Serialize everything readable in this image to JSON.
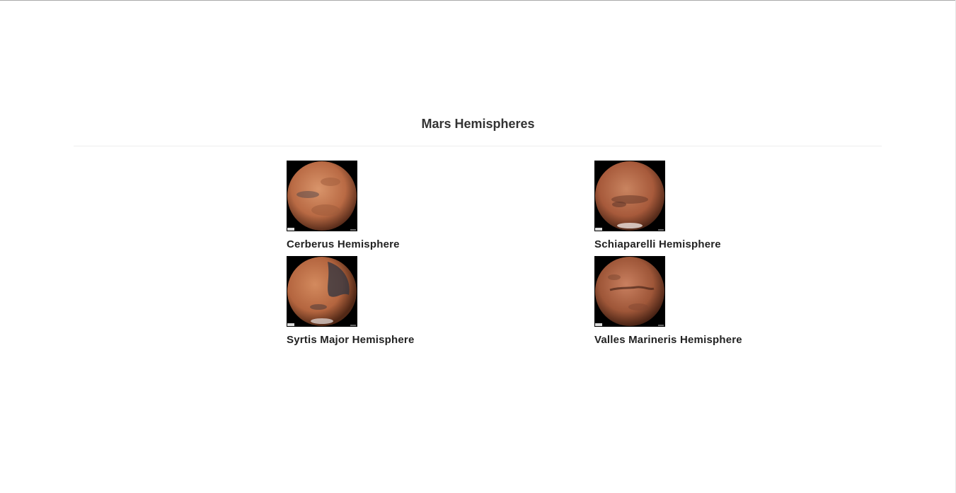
{
  "page": {
    "title": "Mars Hemispheres"
  },
  "hemispheres": [
    {
      "title": "Cerberus Hemisphere",
      "icon": "mars-cerberus-image"
    },
    {
      "title": "Schiaparelli Hemisphere",
      "icon": "mars-schiaparelli-image"
    },
    {
      "title": "Syrtis Major Hemisphere",
      "icon": "mars-syrtis-major-image"
    },
    {
      "title": "Valles Marineris Hemisphere",
      "icon": "mars-valles-marineris-image"
    }
  ],
  "colors": {
    "text": "#333333",
    "mars_light": "#d4875e",
    "mars_dark": "#6b3a25",
    "image_bg": "#000000"
  }
}
